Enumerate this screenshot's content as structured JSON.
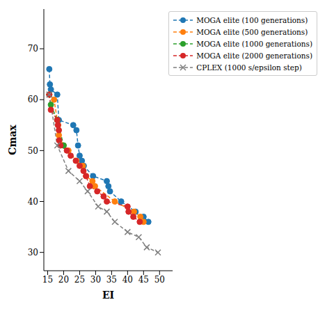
{
  "chart_data": {
    "type": "line",
    "xlabel": "EI",
    "ylabel": "Cmax",
    "xlim": [
      13.8,
      54.1
    ],
    "ylim": [
      26.4,
      77.8
    ],
    "xticks": [
      15,
      20,
      25,
      30,
      35,
      40,
      45,
      50
    ],
    "yticks": [
      30,
      40,
      50,
      60,
      70
    ],
    "grid": false,
    "legend": "upper right",
    "series": [
      {
        "name": "MOGA elite (100 generations)",
        "color": "#1f77b4",
        "marker": "o",
        "line_style": "dashed",
        "x": [
          15.5,
          15.7,
          16,
          18,
          18.5,
          23,
          24,
          24.5,
          25,
          25.7,
          26.3,
          29.2,
          33.5,
          34,
          34.5,
          38,
          42.5,
          45,
          46.5
        ],
        "values": [
          66,
          63,
          62,
          61,
          56,
          55,
          54,
          51,
          49,
          48,
          47,
          45,
          44,
          43,
          42,
          40,
          38,
          37,
          36
        ]
      },
      {
        "name": "MOGA elite (500 generations)",
        "color": "#ff7f0e",
        "marker": "o",
        "line_style": "dashed",
        "x": [
          15.5,
          17,
          18,
          18.3,
          18.5,
          20,
          21.5,
          24,
          26,
          27,
          29,
          29.8,
          36,
          42,
          44,
          45
        ],
        "values": [
          61,
          60,
          56,
          55,
          53,
          51,
          50,
          48,
          47,
          45,
          44,
          43,
          40,
          38,
          37,
          36
        ]
      },
      {
        "name": "MOGA elite (1000 generations)",
        "color": "#2ca02c",
        "marker": "o",
        "line_style": "dashed",
        "x": [
          15.5,
          16,
          18,
          20
        ],
        "values": [
          61,
          59,
          56,
          51
        ]
      },
      {
        "name": "MOGA elite (2000 generations)",
        "color": "#d62728",
        "marker": "o",
        "line_style": "dashed",
        "x": [
          15.5,
          16,
          18,
          18.2,
          18.5,
          18.6,
          19,
          21,
          22.2,
          23.8,
          25,
          26.2,
          27,
          28.2,
          30.5,
          32.5,
          33.5,
          40,
          40.3,
          41.8,
          43.8
        ],
        "values": [
          61,
          58,
          56,
          55,
          54,
          52,
          51,
          50,
          49,
          48,
          47,
          46,
          45,
          43,
          42,
          41,
          40,
          39,
          38,
          37,
          36
        ]
      },
      {
        "name": "CPLEX (1000 s/epsilon step)",
        "color": "#7f7f7f",
        "marker": "x",
        "line_style": "dashed",
        "x": [
          15.5,
          18,
          21.5,
          25,
          27.5,
          30.8,
          33.5,
          36,
          40,
          43.5,
          46,
          49.5
        ],
        "values": [
          61,
          51,
          46,
          44,
          42,
          39,
          38,
          36,
          34,
          33,
          31,
          30
        ]
      }
    ]
  }
}
